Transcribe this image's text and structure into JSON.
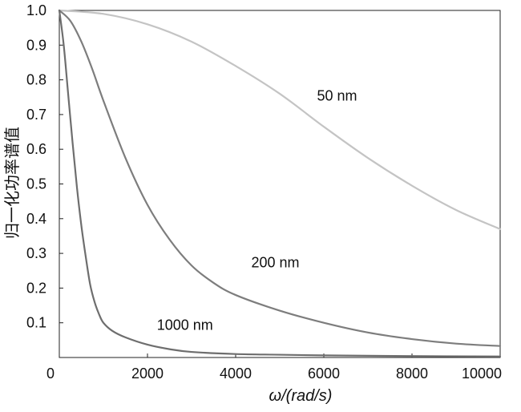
{
  "chart_data": {
    "type": "line",
    "xlabel": "ω/(rad/s)",
    "ylabel": "归一化功率谱值",
    "xlim": [
      0,
      10000
    ],
    "ylim": [
      0,
      1.0
    ],
    "x_ticks": [
      0,
      2000,
      4000,
      6000,
      8000,
      10000
    ],
    "y_ticks": [
      0.1,
      0.2,
      0.3,
      0.4,
      0.5,
      0.6,
      0.7,
      0.8,
      0.9,
      1.0
    ],
    "grid": false,
    "series": [
      {
        "name": "50 nm",
        "color": "#c4c4c4",
        "x": [
          0,
          1000,
          2000,
          3000,
          4000,
          5000,
          6000,
          7000,
          8000,
          9000,
          10000
        ],
        "y": [
          1.0,
          0.99,
          0.96,
          0.91,
          0.84,
          0.76,
          0.665,
          0.575,
          0.495,
          0.425,
          0.37
        ]
      },
      {
        "name": "200 nm",
        "color": "#7d7d7d",
        "x": [
          0,
          250,
          500,
          750,
          1000,
          1500,
          2000,
          2500,
          3000,
          3500,
          4000,
          5000,
          6000,
          7000,
          8000,
          9000,
          10000
        ],
        "y": [
          1.0,
          0.97,
          0.91,
          0.83,
          0.74,
          0.575,
          0.44,
          0.34,
          0.265,
          0.215,
          0.18,
          0.135,
          0.1,
          0.072,
          0.053,
          0.04,
          0.033
        ]
      },
      {
        "name": "1000 nm",
        "color": "#6e6e6e",
        "x": [
          0,
          100,
          200,
          300,
          400,
          500,
          600,
          700,
          800,
          900,
          1000,
          1200,
          1500,
          2000,
          2500,
          3000,
          4000,
          5000,
          6000,
          8000,
          10000
        ],
        "y": [
          1.0,
          0.9,
          0.76,
          0.62,
          0.49,
          0.38,
          0.29,
          0.21,
          0.16,
          0.125,
          0.1,
          0.077,
          0.058,
          0.037,
          0.024,
          0.016,
          0.01,
          0.008,
          0.006,
          0.004,
          0.003
        ]
      }
    ],
    "annotations": [
      {
        "text": "50 nm",
        "x": 6300,
        "y": 0.74
      },
      {
        "text": "200 nm",
        "x": 4900,
        "y": 0.26
      },
      {
        "text": "1000 nm",
        "x": 2850,
        "y": 0.08
      }
    ]
  }
}
